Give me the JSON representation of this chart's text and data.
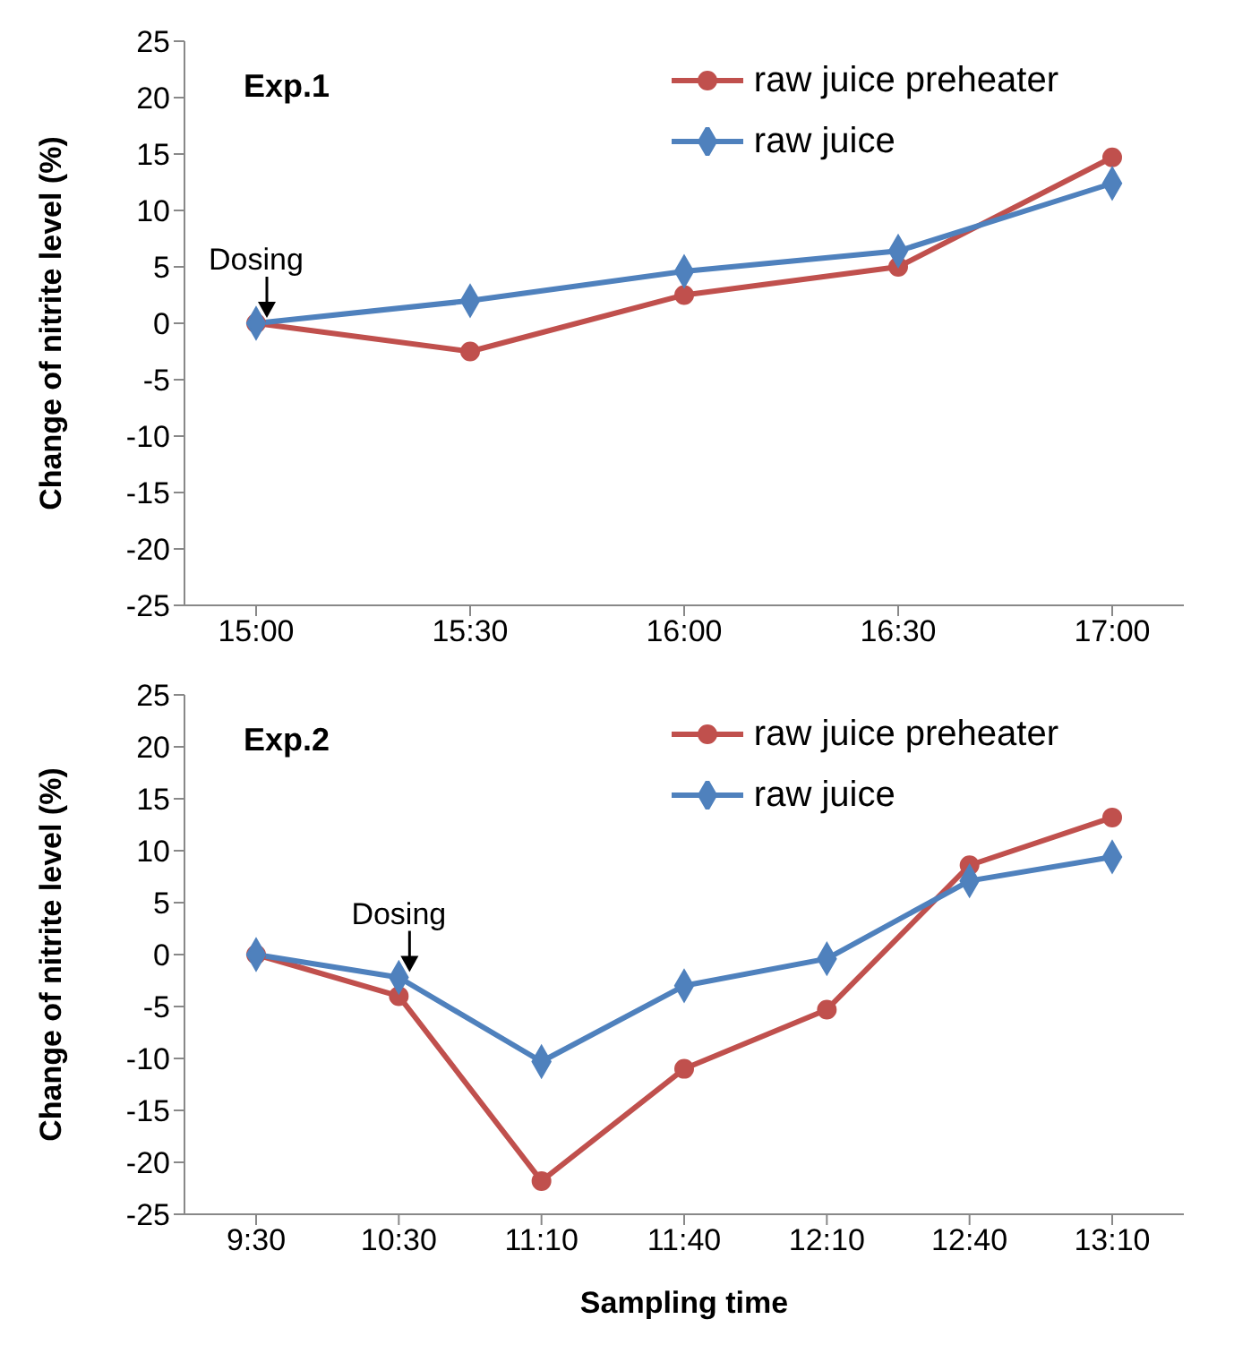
{
  "chart_data": [
    {
      "type": "line",
      "title": "Exp.1",
      "ylabel": "Change of nitrite level (%)",
      "categories": [
        "15:00",
        "15:30",
        "16:00",
        "16:30",
        "17:00"
      ],
      "series": [
        {
          "name": "raw juice preheater",
          "color": "#c0504d",
          "marker": "circle",
          "values": [
            0,
            -2.5,
            2.5,
            5,
            14.7
          ]
        },
        {
          "name": "raw juice",
          "color": "#4f81bd",
          "marker": "diamond",
          "values": [
            0,
            2,
            4.6,
            6.4,
            12.4
          ]
        }
      ],
      "ylim": [
        -25,
        25
      ],
      "yticks": [
        -25,
        -20,
        -15,
        -10,
        -5,
        0,
        5,
        10,
        15,
        20,
        25
      ],
      "grid": false,
      "legend": "top right",
      "annotations": [
        {
          "text": "Dosing",
          "x": "15:00",
          "y": 0
        }
      ]
    },
    {
      "type": "line",
      "title": "Exp.2",
      "ylabel": "Change of nitrite level (%)",
      "xlabel": "Sampling time",
      "categories": [
        "9:30",
        "10:30",
        "11:10",
        "11:40",
        "12:10",
        "12:40",
        "13:10"
      ],
      "series": [
        {
          "name": "raw juice preheater",
          "color": "#c0504d",
          "marker": "circle",
          "values": [
            0,
            -4,
            -21.8,
            -11,
            -5.3,
            8.6,
            13.2
          ]
        },
        {
          "name": "raw juice",
          "color": "#4f81bd",
          "marker": "diamond",
          "values": [
            0,
            -2.2,
            -10.3,
            -3,
            -0.4,
            7.1,
            9.4
          ]
        }
      ],
      "ylim": [
        -25,
        25
      ],
      "yticks": [
        -25,
        -20,
        -15,
        -10,
        -5,
        0,
        5,
        10,
        15,
        20,
        25
      ],
      "grid": false,
      "legend": "top right",
      "annotations": [
        {
          "text": "Dosing",
          "x": "10:30",
          "y": -2.2
        }
      ]
    }
  ]
}
